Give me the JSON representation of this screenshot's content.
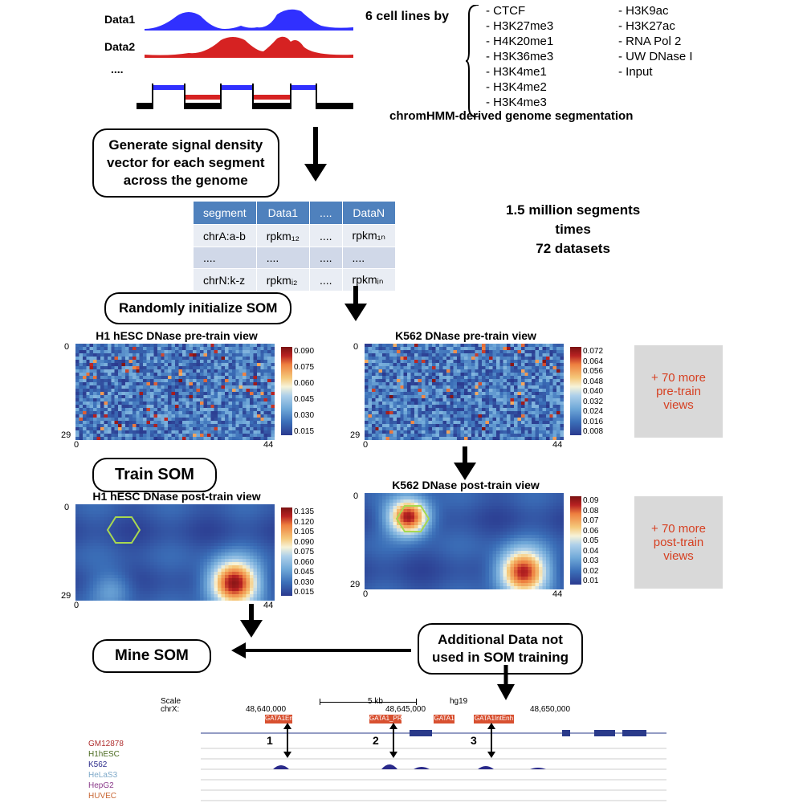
{
  "signals": {
    "data1_label": "Data1",
    "data2_label": "Data2",
    "dots_label": "....",
    "data1_color": "#3030ff",
    "data2_color": "#d62222"
  },
  "cell_lines_label": "6 cell lines by",
  "marks": {
    "col1": [
      "- CTCF",
      "- H3K27me3",
      "- H4K20me1",
      "- H3K36me3",
      "- H3K4me1",
      "- H3K4me2",
      "- H3K4me3"
    ],
    "col2": [
      "- H3K9ac",
      "- H3K27ac",
      "- RNA Pol 2",
      "- UW DNase I",
      "- Input"
    ]
  },
  "segmentation_label": "chromHMM-derived genome segmentation",
  "step1": "Generate signal density\nvector for each segment\nacross the genome",
  "seg_table": {
    "headers": [
      "segment",
      "Data1",
      "....",
      "DataN"
    ],
    "rows": [
      [
        "chrA:a-b",
        "rpkm₁₂",
        "....",
        "rpkm₁ₙ"
      ],
      [
        "....",
        "....",
        "....",
        "...."
      ],
      [
        "chrN:k-z",
        "rpkmᵢ₂",
        "....",
        "rpkmᵢₙ"
      ]
    ]
  },
  "seg_summary": "1.5 million segments\ntimes\n72 datasets",
  "step2": "Randomly initialize SOM",
  "heatmaps": {
    "pre_h1_title": "H1 hESC DNase pre-train view",
    "pre_k562_title": "K562 DNase pre-train view",
    "post_h1_title": "H1 hESC DNase post-train view",
    "post_k562_title": "K562 DNase post-train view",
    "axis": {
      "y_top": "0",
      "y_bot": "29",
      "x_left": "0",
      "x_right": "44"
    },
    "cb_pre_h1": [
      "0.090",
      "0.075",
      "0.060",
      "0.045",
      "0.030",
      "0.015"
    ],
    "cb_pre_k562": [
      "0.072",
      "0.064",
      "0.056",
      "0.048",
      "0.040",
      "0.032",
      "0.024",
      "0.016",
      "0.008"
    ],
    "cb_post_h1": [
      "0.135",
      "0.120",
      "0.105",
      "0.090",
      "0.075",
      "0.060",
      "0.045",
      "0.030",
      "0.015"
    ],
    "cb_post_k562": [
      "0.09",
      "0.08",
      "0.07",
      "0.06",
      "0.05",
      "0.04",
      "0.03",
      "0.02",
      "0.01"
    ],
    "pre_more": "+ 70 more\npre-train\nviews",
    "post_more": "+ 70 more\npost-train\nviews"
  },
  "step3": "Train SOM",
  "step4": "Mine SOM",
  "additional_data": "Additional Data not\nused in SOM training",
  "browser": {
    "scale_label": "Scale",
    "chrx_label": "chrX:",
    "scale_val": "5 kb",
    "assembly": "hg19",
    "coords": [
      "48,640,000",
      "48,645,000",
      "48,650,000"
    ],
    "regions": [
      "GATA1Enh",
      "GATA1_PR",
      "GATA1",
      "GATA1IntEnh"
    ],
    "tracks": [
      {
        "name": "GM12878",
        "color": "#b03030"
      },
      {
        "name": "H1hESC",
        "color": "#4a6a1f"
      },
      {
        "name": "K562",
        "color": "#2a2a8a",
        "peaks": true
      },
      {
        "name": "HeLaS3",
        "color": "#7da8c8"
      },
      {
        "name": "HepG2",
        "color": "#8a3a8a"
      },
      {
        "name": "HUVEC",
        "color": "#c86633"
      }
    ],
    "peak_labels": [
      "1",
      "2",
      "3"
    ]
  }
}
